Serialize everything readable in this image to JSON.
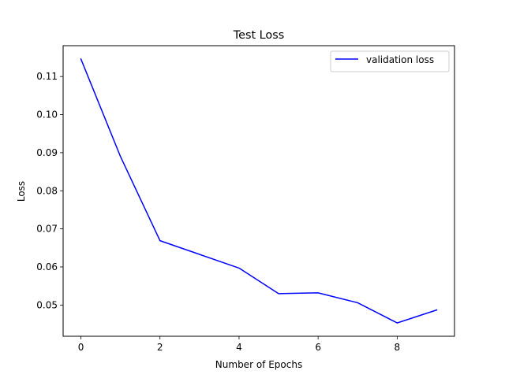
{
  "chart_data": {
    "type": "line",
    "title": "Test Loss",
    "xlabel": "Number of Epochs",
    "ylabel": "Loss",
    "xlim": [
      -0.45,
      9.45
    ],
    "ylim": [
      0.0418,
      0.1181
    ],
    "xticks": [
      0,
      2,
      4,
      6,
      8
    ],
    "xtick_labels": [
      "0",
      "2",
      "4",
      "6",
      "8"
    ],
    "yticks": [
      0.05,
      0.06,
      0.07,
      0.08,
      0.09,
      0.1,
      0.11
    ],
    "ytick_labels": [
      "0.05",
      "0.06",
      "0.07",
      "0.08",
      "0.09",
      "0.10",
      "0.11"
    ],
    "grid": false,
    "legend_position": "top-right",
    "series": [
      {
        "name": "validation loss",
        "color": "#0000ff",
        "x": [
          0,
          1,
          2,
          3,
          4,
          5,
          6,
          7,
          8,
          9
        ],
        "y": [
          0.1146,
          0.089,
          0.0669,
          0.0633,
          0.0597,
          0.053,
          0.0532,
          0.0506,
          0.0453,
          0.0487
        ]
      }
    ]
  }
}
